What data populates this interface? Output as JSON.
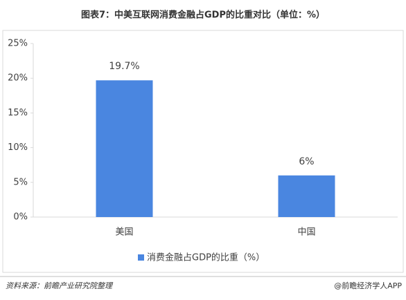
{
  "chart_data": {
    "type": "bar",
    "title": "图表7：中美互联网消费金融占GDP的比重对比（单位：%）",
    "categories": [
      "美国",
      "中国"
    ],
    "series": [
      {
        "name": "消费金融占GDP的比重（%）",
        "color": "#4a86e0",
        "values": [
          19.7,
          6
        ],
        "value_labels": [
          "19.7%",
          "6%"
        ]
      }
    ],
    "ylim": [
      0,
      25
    ],
    "yticks": [
      {
        "value": 0,
        "label": "0%"
      },
      {
        "value": 5,
        "label": "5%"
      },
      {
        "value": 10,
        "label": "10%"
      },
      {
        "value": 15,
        "label": "15%"
      },
      {
        "value": 20,
        "label": "20%"
      },
      {
        "value": 25,
        "label": "25%"
      }
    ],
    "legend": "bottom",
    "source": "资料来源：前瞻产业研究院整理",
    "credit": "@前瞻经济学人APP"
  }
}
